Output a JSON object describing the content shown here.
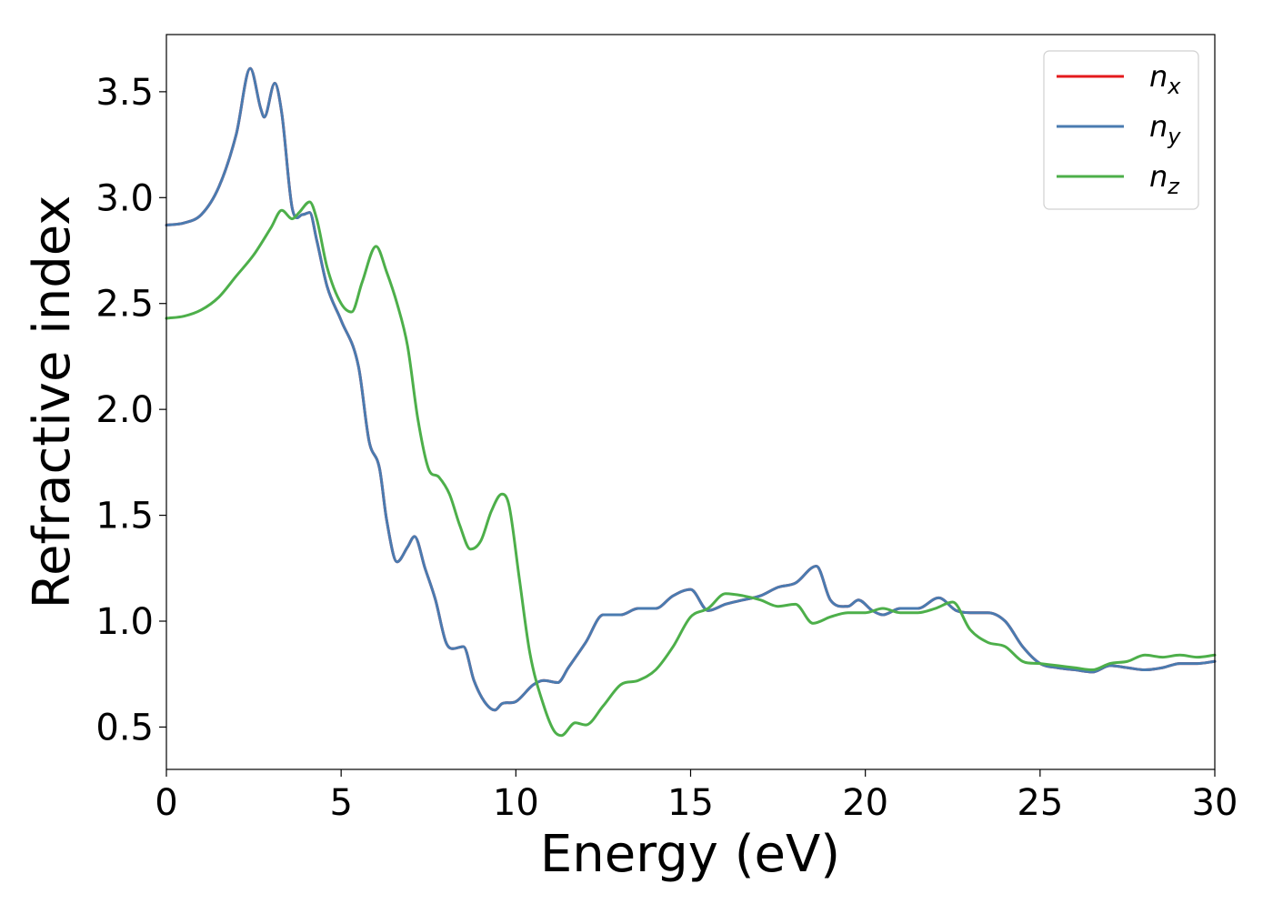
{
  "chart_data": {
    "type": "line",
    "xlabel": "Energy (eV)",
    "ylabel": "Refractive index",
    "xlim": [
      0,
      30
    ],
    "ylim": [
      0.3,
      3.77
    ],
    "xticks": [
      0,
      5,
      10,
      15,
      20,
      25,
      30
    ],
    "xtick_labels": [
      "0",
      "5",
      "10",
      "15",
      "20",
      "25",
      "30"
    ],
    "yticks": [
      0.5,
      1.0,
      1.5,
      2.0,
      2.5,
      3.0,
      3.5
    ],
    "ytick_labels": [
      "0.5",
      "1.0",
      "1.5",
      "2.0",
      "2.5",
      "3.0",
      "3.5"
    ],
    "grid": false,
    "legend_position": "top-right",
    "series": [
      {
        "name": "n_x",
        "legend_base": "n",
        "legend_sub": "x",
        "color": "#e41a1c",
        "x": [
          0,
          0.5,
          1.0,
          1.5,
          2.0,
          2.4,
          2.7,
          2.8,
          3.1,
          3.3,
          3.6,
          3.9,
          4.1,
          4.3,
          4.6,
          5.0,
          5.5,
          5.8,
          6.1,
          6.3,
          6.6,
          6.9,
          7.1,
          7.4,
          7.7,
          8.0,
          8.2,
          8.5,
          8.8,
          9.1,
          9.4,
          9.6,
          10.0,
          10.5,
          10.8,
          11.2,
          11.5,
          12.0,
          12.5,
          13.0,
          13.5,
          14.0,
          14.5,
          15.0,
          15.5,
          16.0,
          16.5,
          17.0,
          17.5,
          18.0,
          18.6,
          19.0,
          19.5,
          19.8,
          20.2,
          20.5,
          21.0,
          21.5,
          22.1,
          22.6,
          23.0,
          23.5,
          24.0,
          24.5,
          25.0,
          25.5,
          26.0,
          26.5,
          27.0,
          27.5,
          28.0,
          28.5,
          29.0,
          29.5,
          30.0
        ],
        "y": [
          2.87,
          2.88,
          2.92,
          3.05,
          3.3,
          3.61,
          3.42,
          3.38,
          3.54,
          3.4,
          2.95,
          2.92,
          2.93,
          2.8,
          2.58,
          2.42,
          2.2,
          1.85,
          1.72,
          1.48,
          1.28,
          1.35,
          1.4,
          1.25,
          1.1,
          0.9,
          0.87,
          0.88,
          0.72,
          0.62,
          0.58,
          0.61,
          0.62,
          0.7,
          0.72,
          0.71,
          0.78,
          0.9,
          1.03,
          1.03,
          1.06,
          1.06,
          1.12,
          1.15,
          1.05,
          1.08,
          1.1,
          1.12,
          1.16,
          1.18,
          1.26,
          1.1,
          1.07,
          1.1,
          1.05,
          1.03,
          1.06,
          1.06,
          1.11,
          1.05,
          1.04,
          1.04,
          1.0,
          0.88,
          0.8,
          0.78,
          0.77,
          0.76,
          0.79,
          0.78,
          0.77,
          0.78,
          0.8,
          0.8,
          0.81
        ]
      },
      {
        "name": "n_y",
        "legend_base": "n",
        "legend_sub": "y",
        "color": "#4a7bb0",
        "x": [
          0,
          0.5,
          1.0,
          1.5,
          2.0,
          2.4,
          2.7,
          2.8,
          3.1,
          3.3,
          3.6,
          3.9,
          4.1,
          4.3,
          4.6,
          5.0,
          5.5,
          5.8,
          6.1,
          6.3,
          6.6,
          6.9,
          7.1,
          7.4,
          7.7,
          8.0,
          8.2,
          8.5,
          8.8,
          9.1,
          9.4,
          9.6,
          10.0,
          10.5,
          10.8,
          11.2,
          11.5,
          12.0,
          12.5,
          13.0,
          13.5,
          14.0,
          14.5,
          15.0,
          15.5,
          16.0,
          16.5,
          17.0,
          17.5,
          18.0,
          18.6,
          19.0,
          19.5,
          19.8,
          20.2,
          20.5,
          21.0,
          21.5,
          22.1,
          22.6,
          23.0,
          23.5,
          24.0,
          24.5,
          25.0,
          25.5,
          26.0,
          26.5,
          27.0,
          27.5,
          28.0,
          28.5,
          29.0,
          29.5,
          30.0
        ],
        "y": [
          2.87,
          2.88,
          2.92,
          3.05,
          3.3,
          3.61,
          3.42,
          3.38,
          3.54,
          3.4,
          2.95,
          2.92,
          2.93,
          2.8,
          2.58,
          2.42,
          2.2,
          1.85,
          1.72,
          1.48,
          1.28,
          1.35,
          1.4,
          1.25,
          1.1,
          0.9,
          0.87,
          0.88,
          0.72,
          0.62,
          0.58,
          0.61,
          0.62,
          0.7,
          0.72,
          0.71,
          0.78,
          0.9,
          1.03,
          1.03,
          1.06,
          1.06,
          1.12,
          1.15,
          1.05,
          1.08,
          1.1,
          1.12,
          1.16,
          1.18,
          1.26,
          1.1,
          1.07,
          1.1,
          1.05,
          1.03,
          1.06,
          1.06,
          1.11,
          1.05,
          1.04,
          1.04,
          1.0,
          0.88,
          0.8,
          0.78,
          0.77,
          0.76,
          0.79,
          0.78,
          0.77,
          0.78,
          0.8,
          0.8,
          0.81
        ]
      },
      {
        "name": "n_z",
        "legend_base": "n",
        "legend_sub": "z",
        "color": "#4daf4a",
        "x": [
          0,
          0.5,
          1.0,
          1.5,
          2.0,
          2.5,
          3.0,
          3.3,
          3.6,
          3.8,
          4.1,
          4.3,
          4.6,
          5.0,
          5.3,
          5.6,
          6.0,
          6.3,
          6.6,
          6.9,
          7.2,
          7.5,
          7.8,
          8.1,
          8.4,
          8.7,
          9.0,
          9.3,
          9.6,
          9.8,
          10.1,
          10.4,
          10.8,
          11.1,
          11.3,
          11.7,
          12.0,
          12.5,
          13.0,
          13.5,
          14.0,
          14.5,
          15.0,
          15.5,
          16.0,
          16.5,
          17.0,
          17.5,
          18.0,
          18.5,
          19.0,
          19.5,
          20.0,
          20.5,
          21.0,
          21.5,
          22.0,
          22.5,
          23.0,
          23.5,
          24.0,
          24.5,
          25.0,
          25.5,
          26.0,
          26.5,
          27.0,
          27.5,
          28.0,
          28.5,
          29.0,
          29.5,
          30.0
        ],
        "y": [
          2.43,
          2.44,
          2.47,
          2.53,
          2.63,
          2.73,
          2.86,
          2.94,
          2.9,
          2.93,
          2.98,
          2.9,
          2.67,
          2.5,
          2.46,
          2.6,
          2.77,
          2.65,
          2.5,
          2.3,
          1.95,
          1.72,
          1.68,
          1.6,
          1.45,
          1.34,
          1.38,
          1.52,
          1.6,
          1.55,
          1.2,
          0.85,
          0.6,
          0.48,
          0.46,
          0.52,
          0.51,
          0.6,
          0.7,
          0.72,
          0.77,
          0.88,
          1.02,
          1.06,
          1.13,
          1.12,
          1.1,
          1.07,
          1.08,
          0.99,
          1.02,
          1.04,
          1.04,
          1.06,
          1.04,
          1.04,
          1.06,
          1.09,
          0.96,
          0.9,
          0.88,
          0.81,
          0.8,
          0.79,
          0.78,
          0.77,
          0.8,
          0.81,
          0.84,
          0.83,
          0.84,
          0.83,
          0.84
        ]
      }
    ]
  }
}
